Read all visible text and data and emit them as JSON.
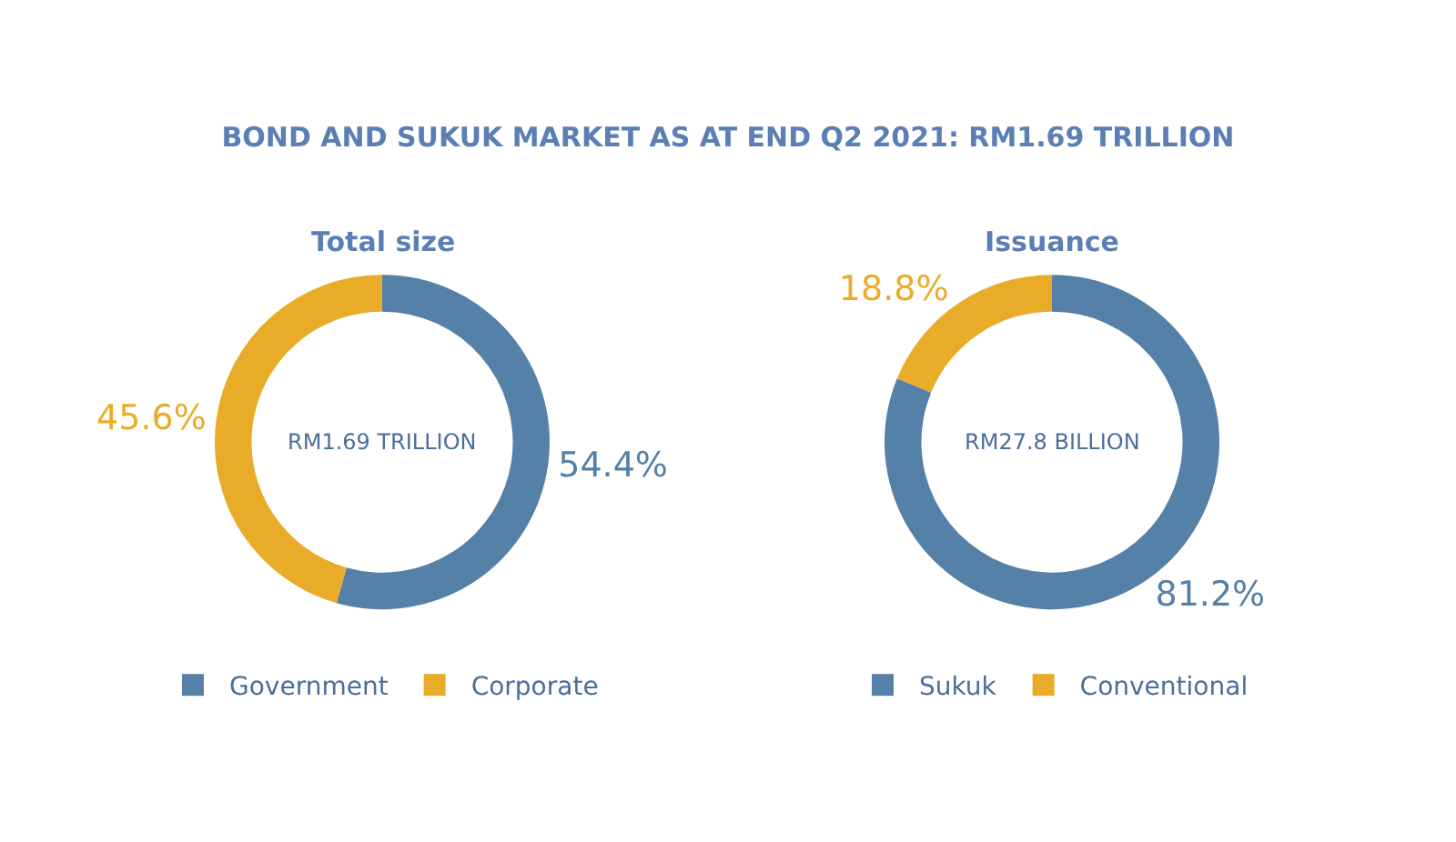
{
  "chart_data": [
    {
      "type": "donut",
      "title": "BOND AND SUKUK MARKET AS AT END Q2 2021: RM1.69 TRILLION",
      "subtitle": "Total size",
      "categories": [
        "Government",
        "Corporate"
      ],
      "values": [
        54.4,
        45.6
      ],
      "colors": [
        "#5580a8",
        "#e8ac28"
      ],
      "value_labels": [
        "54.4%",
        "45.6%"
      ],
      "annotations": [
        "RM1.69 TRILLION"
      ],
      "legend": "bottom"
    },
    {
      "type": "donut",
      "subtitle": "Issuance",
      "categories": [
        "Sukuk",
        "Conventional"
      ],
      "values": [
        81.2,
        18.8
      ],
      "colors": [
        "#5580a8",
        "#e8ac28"
      ],
      "value_labels": [
        "81.2%",
        "18.8%"
      ],
      "annotations": [
        "RM27.8 BILLION"
      ],
      "legend": "bottom"
    }
  ]
}
